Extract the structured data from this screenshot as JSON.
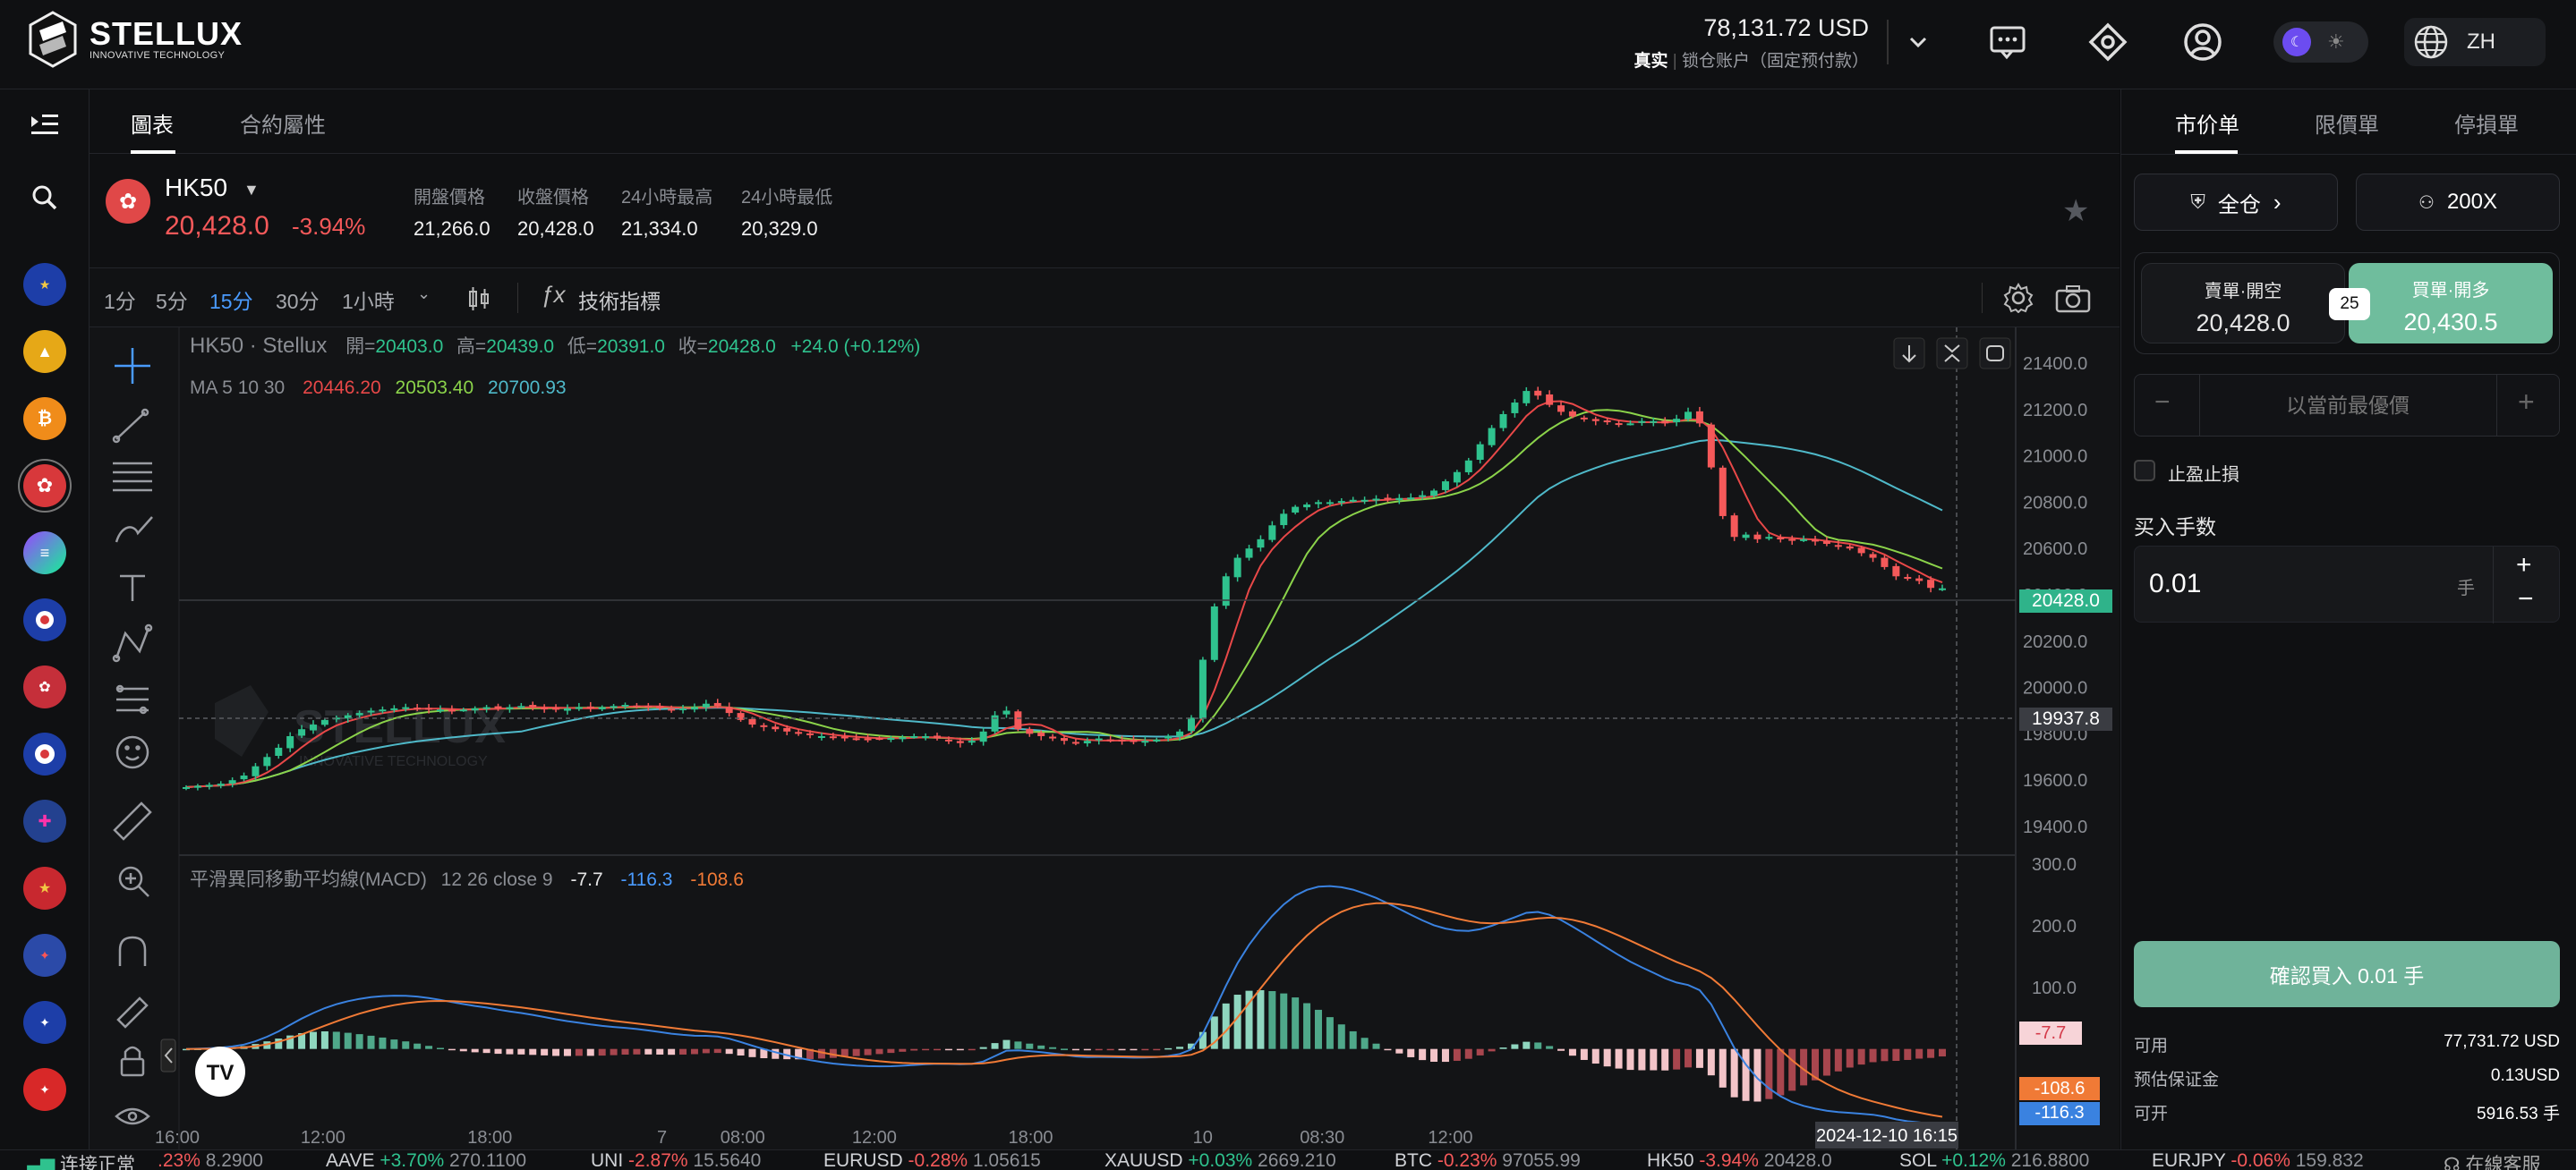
{
  "brand": {
    "name": "STELLUX",
    "tagline": "INNOVATIVE TECHNOLOGY"
  },
  "account": {
    "balance": "78,131.72 USD",
    "mode": "真实",
    "type": "锁仓账户（固定预付款）"
  },
  "header_icons": [
    "chevron-down-icon",
    "message-icon",
    "support-icon",
    "user-icon"
  ],
  "language": "ZH",
  "left_bar": {
    "icons": [
      "collapse-icon",
      "search-icon"
    ],
    "coins": [
      "EURUSD",
      "XAUUSD",
      "BTC",
      "HK50",
      "SOL",
      "USDJPY",
      "USDHKD",
      "JPN225",
      "GBPUSD",
      "USDCNH",
      "USDCAD",
      "AUDUSD",
      "CADJPY"
    ]
  },
  "tabs": {
    "chart": "圖表",
    "contract": "合約屬性"
  },
  "symbol": {
    "name": "HK50",
    "price": "20,428.0",
    "change": "-3.94%",
    "stats": [
      {
        "label": "開盤價格",
        "value": "21,266.0"
      },
      {
        "label": "收盤價格",
        "value": "20,428.0"
      },
      {
        "label": "24小時最高",
        "value": "21,334.0"
      },
      {
        "label": "24小時最低",
        "value": "20,329.0"
      }
    ]
  },
  "toolbar": {
    "timeframes": [
      "1分",
      "5分",
      "15分",
      "30分",
      "1小時"
    ],
    "active_timeframe": "15分",
    "indicators": "技術指標"
  },
  "chart_overlay": {
    "title": "HK50 · Stellux",
    "ohlc": {
      "o_label": "開=",
      "o": "20403.0",
      "h_label": "高=",
      "h": "20439.0",
      "l_label": "低=",
      "l": "20391.0",
      "c_label": "收=",
      "c": "20428.0",
      "chg": "+24.0 (+0.12%)"
    },
    "ma": {
      "label": "MA 5 10 30",
      "v5": "20446.20",
      "v10": "20503.40",
      "v30": "20700.93"
    },
    "macd": {
      "label": "平滑異同移動平均線(MACD)",
      "params": "12 26 close 9",
      "hist": "-7.7",
      "macd": "-116.3",
      "signal": "-108.6"
    },
    "price_tag": "20428.0",
    "crosshair_tag": "19937.8",
    "macd_tags": [
      "-7.7",
      "-108.6",
      "-116.3"
    ],
    "time_tag": "2024-12-10   16:15",
    "tv_logo": "TV"
  },
  "chart_data": {
    "type": "candlestick",
    "symbol": "HK50",
    "interval": "15分",
    "price_axis": {
      "ticks": [
        "21400.0",
        "21200.0",
        "21000.0",
        "20800.0",
        "20600.0",
        "20400.0",
        "20200.0",
        "20000.0",
        "19800.0",
        "19600.0",
        "19400.0"
      ],
      "range": [
        19400,
        21400
      ]
    },
    "macd_axis": {
      "ticks": [
        "300.0",
        "200.0",
        "100.0"
      ],
      "range": [
        -150,
        300
      ]
    },
    "time_ticks": [
      "16:00",
      "12:00",
      "18:00",
      "7",
      "08:00",
      "12:00",
      "18:00",
      "10",
      "08:30",
      "12:00"
    ],
    "close_path": [
      19570,
      19575,
      19580,
      19585,
      19600,
      19620,
      19660,
      19700,
      19740,
      19790,
      19820,
      19840,
      19860,
      19870,
      19880,
      19890,
      19900,
      19905,
      19910,
      19915,
      19910,
      19905,
      19905,
      19900,
      19905,
      19910,
      19915,
      19910,
      19915,
      19920,
      19915,
      19910,
      19905,
      19910,
      19915,
      19910,
      19915,
      19920,
      19925,
      19920,
      19915,
      19910,
      19905,
      19910,
      19915,
      19930,
      19920,
      19890,
      19860,
      19840,
      19830,
      19820,
      19810,
      19800,
      19795,
      19790,
      19785,
      19785,
      19780,
      19778,
      19780,
      19782,
      19785,
      19790,
      19790,
      19780,
      19770,
      19760,
      19770,
      19810,
      19880,
      19900,
      19820,
      19800,
      19790,
      19780,
      19770,
      19760,
      19770,
      19780,
      19775,
      19770,
      19765,
      19770,
      19775,
      19790,
      19810,
      19870,
      20120,
      20350,
      20480,
      20560,
      20600,
      20640,
      20700,
      20750,
      20780,
      20790,
      20800,
      20800,
      20805,
      20810,
      20810,
      20815,
      20812,
      20818,
      20820,
      20830,
      20850,
      20890,
      20930,
      20980,
      21050,
      21120,
      21180,
      21230,
      21280,
      21260,
      21220,
      21190,
      21170,
      21160,
      21150,
      21145,
      21140,
      21140,
      21150,
      21150,
      21140,
      21160,
      21190,
      21140,
      20950,
      20740,
      20650,
      20660,
      20640,
      20650,
      20640,
      20635,
      20640,
      20630,
      20620,
      20610,
      20600,
      20580,
      20560,
      20520,
      20480,
      20470,
      20460,
      20430,
      20428
    ],
    "ma_values": {
      "MA5": 20446.2,
      "MA10": 20503.4,
      "MA30": 20700.93
    },
    "macd": {
      "macd": -116.3,
      "signal": -108.6,
      "histogram": -7.7
    }
  },
  "order_panel": {
    "tabs": [
      "市价单",
      "限價單",
      "停損單"
    ],
    "margin_mode": "全仓",
    "leverage": "200X",
    "sell": {
      "label": "賣單·開空",
      "price": "20,428.0"
    },
    "buy": {
      "label": "買單·開多",
      "price": "20,430.5"
    },
    "spread": "25",
    "price_placeholder": "以當前最優價",
    "tp_sl": "止盈止損",
    "qty_label": "买入手数",
    "qty": "0.01",
    "qty_unit": "手",
    "confirm": "確認買入 0.01 手",
    "info": [
      {
        "k": "可用",
        "v": "77,731.72 USD"
      },
      {
        "k": "预估保证金",
        "v": "0.13USD"
      },
      {
        "k": "可开",
        "v": "5916.53 手"
      }
    ]
  },
  "ticker": {
    "status": "连接正常",
    "items": [
      {
        "name": "",
        "chg": ".23%",
        "price": "8.2900",
        "dir": "dn"
      },
      {
        "name": "AAVE",
        "chg": "+3.70%",
        "price": "270.1100",
        "dir": "up"
      },
      {
        "name": "UNI",
        "chg": "-2.87%",
        "price": "15.5640",
        "dir": "dn"
      },
      {
        "name": "EURUSD",
        "chg": "-0.28%",
        "price": "1.05615",
        "dir": "dn"
      },
      {
        "name": "XAUUSD",
        "chg": "+0.03%",
        "price": "2669.210",
        "dir": "up"
      },
      {
        "name": "BTC",
        "chg": "-0.23%",
        "price": "97055.99",
        "dir": "dn"
      },
      {
        "name": "HK50",
        "chg": "-3.94%",
        "price": "20428.0",
        "dir": "dn"
      },
      {
        "name": "SOL",
        "chg": "+0.12%",
        "price": "216.8800",
        "dir": "up"
      },
      {
        "name": "EURJPY",
        "chg": "-0.06%",
        "price": "159.832",
        "dir": "dn"
      }
    ],
    "support": "在線客服"
  },
  "colors": {
    "up": "#2fc28e",
    "down": "#f5595a",
    "accent": "#4a9bff",
    "confirm": "#6fb39a",
    "ma5": "#e84848",
    "ma10": "#8bd34a",
    "ma30": "#4fb9c9"
  }
}
